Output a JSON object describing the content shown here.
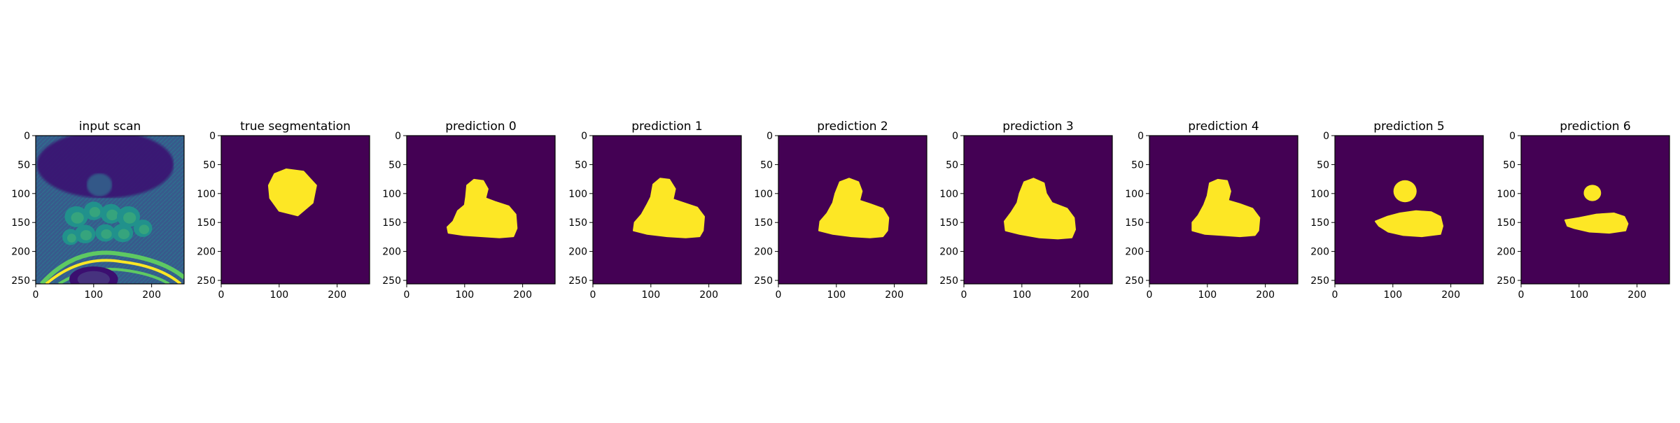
{
  "chart_data": [
    {
      "type": "heatmap",
      "title": "input scan",
      "image": "mri-scan",
      "xlim": [
        0,
        256
      ],
      "ylim": [
        256,
        0
      ],
      "xticks": [
        0,
        100,
        200
      ],
      "yticks": [
        0,
        50,
        100,
        150,
        200,
        250
      ]
    },
    {
      "type": "heatmap",
      "title": "true segmentation",
      "image": "mask",
      "xlim": [
        0,
        256
      ],
      "ylim": [
        256,
        0
      ],
      "xticks": [
        0,
        100,
        200
      ],
      "yticks": [
        0,
        50,
        100,
        150,
        200,
        250
      ],
      "mask_shapes": [
        {
          "kind": "polygon",
          "points": [
            [
              82,
              86
            ],
            [
              92,
              66
            ],
            [
              112,
              58
            ],
            [
              142,
              62
            ],
            [
              164,
              86
            ],
            [
              158,
              116
            ],
            [
              132,
              138
            ],
            [
              100,
              130
            ],
            [
              84,
              108
            ]
          ]
        }
      ]
    },
    {
      "type": "heatmap",
      "title": "prediction 0",
      "image": "mask",
      "xlim": [
        0,
        256
      ],
      "ylim": [
        256,
        0
      ],
      "xticks": [
        0,
        100,
        200
      ],
      "yticks": [
        0,
        50,
        100,
        150,
        200,
        250
      ],
      "mask_shapes": [
        {
          "kind": "polygon",
          "points": [
            [
              102,
              106
            ],
            [
              104,
              86
            ],
            [
              116,
              76
            ],
            [
              132,
              78
            ],
            [
              140,
              92
            ],
            [
              136,
              108
            ],
            [
              152,
              114
            ],
            [
              176,
              122
            ],
            [
              188,
              136
            ],
            [
              190,
              160
            ],
            [
              184,
              174
            ],
            [
              160,
              176
            ],
            [
              130,
              174
            ],
            [
              98,
              172
            ],
            [
              72,
              168
            ],
            [
              70,
              158
            ],
            [
              80,
              148
            ],
            [
              88,
              130
            ],
            [
              100,
              120
            ]
          ]
        }
      ]
    },
    {
      "type": "heatmap",
      "title": "prediction 1",
      "image": "mask",
      "xlim": [
        0,
        256
      ],
      "ylim": [
        256,
        0
      ],
      "xticks": [
        0,
        100,
        200
      ],
      "yticks": [
        0,
        50,
        100,
        150,
        200,
        250
      ],
      "mask_shapes": [
        {
          "kind": "polygon",
          "points": [
            [
              100,
              106
            ],
            [
              104,
              84
            ],
            [
              116,
              74
            ],
            [
              132,
              76
            ],
            [
              142,
              92
            ],
            [
              138,
              110
            ],
            [
              156,
              116
            ],
            [
              180,
              124
            ],
            [
              192,
              140
            ],
            [
              190,
              164
            ],
            [
              184,
              174
            ],
            [
              160,
              176
            ],
            [
              128,
              174
            ],
            [
              94,
              170
            ],
            [
              70,
              164
            ],
            [
              72,
              150
            ],
            [
              84,
              136
            ],
            [
              94,
              118
            ]
          ]
        }
      ]
    },
    {
      "type": "heatmap",
      "title": "prediction 2",
      "image": "mask",
      "xlim": [
        0,
        256
      ],
      "ylim": [
        256,
        0
      ],
      "xticks": [
        0,
        100,
        200
      ],
      "yticks": [
        0,
        50,
        100,
        150,
        200,
        250
      ],
      "mask_shapes": [
        {
          "kind": "polygon",
          "points": [
            [
              98,
              100
            ],
            [
              106,
              80
            ],
            [
              122,
              74
            ],
            [
              138,
              80
            ],
            [
              144,
              96
            ],
            [
              140,
              112
            ],
            [
              158,
              118
            ],
            [
              180,
              126
            ],
            [
              190,
              142
            ],
            [
              188,
              164
            ],
            [
              180,
              174
            ],
            [
              158,
              176
            ],
            [
              126,
              174
            ],
            [
              94,
              170
            ],
            [
              70,
              164
            ],
            [
              72,
              148
            ],
            [
              84,
              134
            ],
            [
              94,
              116
            ]
          ]
        }
      ]
    },
    {
      "type": "heatmap",
      "title": "prediction 3",
      "image": "mask",
      "xlim": [
        0,
        256
      ],
      "ylim": [
        256,
        0
      ],
      "xticks": [
        0,
        100,
        200
      ],
      "yticks": [
        0,
        50,
        100,
        150,
        200,
        250
      ],
      "mask_shapes": [
        {
          "kind": "polygon",
          "points": [
            [
              96,
              100
            ],
            [
              104,
              80
            ],
            [
              120,
              74
            ],
            [
              138,
              82
            ],
            [
              142,
              100
            ],
            [
              152,
              116
            ],
            [
              178,
              126
            ],
            [
              190,
              142
            ],
            [
              192,
              162
            ],
            [
              186,
              176
            ],
            [
              162,
              178
            ],
            [
              130,
              176
            ],
            [
              96,
              170
            ],
            [
              72,
              164
            ],
            [
              70,
              148
            ],
            [
              82,
              132
            ],
            [
              92,
              116
            ]
          ]
        }
      ]
    },
    {
      "type": "heatmap",
      "title": "prediction 4",
      "image": "mask",
      "xlim": [
        0,
        256
      ],
      "ylim": [
        256,
        0
      ],
      "xticks": [
        0,
        100,
        200
      ],
      "yticks": [
        0,
        50,
        100,
        150,
        200,
        250
      ],
      "mask_shapes": [
        {
          "kind": "polygon",
          "points": [
            [
              100,
              104
            ],
            [
              104,
              82
            ],
            [
              118,
              76
            ],
            [
              134,
              78
            ],
            [
              140,
              96
            ],
            [
              136,
              112
            ],
            [
              156,
              118
            ],
            [
              178,
              126
            ],
            [
              190,
              142
            ],
            [
              188,
              164
            ],
            [
              182,
              172
            ],
            [
              156,
              174
            ],
            [
              126,
              172
            ],
            [
              96,
              170
            ],
            [
              74,
              164
            ],
            [
              74,
              150
            ],
            [
              84,
              138
            ],
            [
              94,
              120
            ]
          ]
        }
      ]
    },
    {
      "type": "heatmap",
      "title": "prediction 5",
      "image": "mask",
      "xlim": [
        0,
        256
      ],
      "ylim": [
        256,
        0
      ],
      "xticks": [
        0,
        100,
        200
      ],
      "yticks": [
        0,
        50,
        100,
        150,
        200,
        250
      ],
      "mask_shapes": [
        {
          "kind": "ellipse",
          "cx": 121,
          "cy": 96,
          "rx": 20,
          "ry": 19
        },
        {
          "kind": "polygon",
          "points": [
            [
              70,
              148
            ],
            [
              90,
              140
            ],
            [
              112,
              134
            ],
            [
              140,
              130
            ],
            [
              166,
              132
            ],
            [
              182,
              140
            ],
            [
              186,
              156
            ],
            [
              182,
              170
            ],
            [
              150,
              174
            ],
            [
              118,
              172
            ],
            [
              92,
              166
            ],
            [
              76,
              156
            ]
          ]
        }
      ]
    },
    {
      "type": "heatmap",
      "title": "prediction 6",
      "image": "mask",
      "xlim": [
        0,
        256
      ],
      "ylim": [
        256,
        0
      ],
      "xticks": [
        0,
        100,
        200
      ],
      "yticks": [
        0,
        50,
        100,
        150,
        200,
        250
      ],
      "mask_shapes": [
        {
          "kind": "ellipse",
          "cx": 123,
          "cy": 99,
          "rx": 15,
          "ry": 14
        },
        {
          "kind": "polygon",
          "points": [
            [
              76,
              146
            ],
            [
              100,
              142
            ],
            [
              130,
              136
            ],
            [
              160,
              134
            ],
            [
              178,
              140
            ],
            [
              184,
              152
            ],
            [
              180,
              164
            ],
            [
              152,
              168
            ],
            [
              118,
              166
            ],
            [
              92,
              160
            ],
            [
              80,
              156
            ]
          ]
        }
      ]
    }
  ],
  "colors": {
    "mask_background": "#440154",
    "mask_foreground": "#fde725",
    "scan_dark": "#3b0f70",
    "scan_mid": "#3b528b",
    "scan_teal": "#21918c",
    "scan_green": "#5ec962",
    "scan_bright": "#fde725"
  }
}
